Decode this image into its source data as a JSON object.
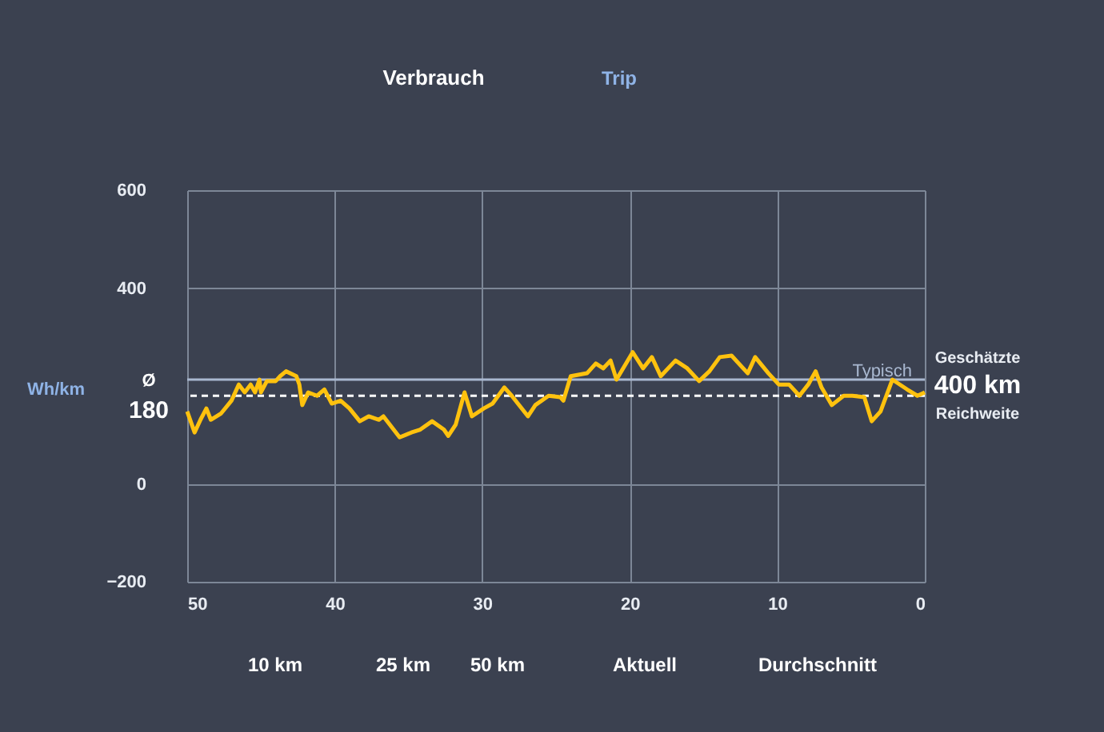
{
  "chart_data": {
    "type": "line",
    "ylabel": "Wh/km",
    "xlim": [
      50,
      0
    ],
    "xticks": [
      50,
      40,
      30,
      20,
      10,
      0
    ],
    "ylim": [
      -200,
      600
    ],
    "yticks": [
      -200,
      0,
      400,
      600
    ],
    "grid": true,
    "marker": "none",
    "line_style": "solid",
    "x": [
      50,
      49.5,
      49.1,
      48.7,
      48.4,
      47.7,
      47.0,
      46.5,
      46.1,
      45.7,
      45.4,
      45.1,
      45.0,
      44.6,
      44.0,
      43.7,
      43.3,
      42.6,
      42.4,
      42.2,
      41.8,
      41.2,
      40.7,
      40.2,
      39.6,
      39.0,
      38.3,
      37.7,
      37.0,
      36.7,
      35.6,
      34.8,
      34.2,
      33.4,
      32.6,
      32.3,
      31.8,
      31.2,
      30.7,
      29.9,
      29.3,
      28.5,
      28.0,
      26.9,
      26.4,
      25.5,
      24.7,
      24.5,
      24.0,
      22.9,
      22.3,
      21.8,
      21.3,
      20.9,
      19.8,
      19.1,
      18.5,
      17.9,
      16.9,
      16.1,
      15.3,
      14.6,
      13.9,
      13.1,
      12.0,
      11.5,
      10.6,
      9.9,
      9.2,
      8.5,
      7.9,
      7.4,
      7.0,
      6.3,
      5.5,
      4.9,
      4.1,
      3.6,
      3.0,
      2.2,
      1.2,
      0.5,
      0
    ],
    "series": [
      {
        "color": "#ffc20e",
        "values": [
          148,
          105,
          131,
          154,
          131,
          144,
          170,
          203,
          187,
          203,
          187,
          213,
          187,
          210,
          210,
          220,
          230,
          220,
          203,
          161,
          187,
          180,
          193,
          164,
          170,
          154,
          128,
          138,
          131,
          138,
          95,
          105,
          111,
          128,
          111,
          98,
          121,
          187,
          138,
          154,
          164,
          197,
          180,
          138,
          161,
          180,
          177,
          170,
          220,
          226,
          246,
          236,
          252,
          213,
          269,
          236,
          259,
          220,
          252,
          236,
          210,
          230,
          259,
          262,
          226,
          259,
          226,
          203,
          203,
          180,
          203,
          230,
          197,
          161,
          180,
          180,
          177,
          128,
          148,
          213,
          193,
          180,
          187
        ]
      }
    ],
    "ref_lines": [
      {
        "axis": "y",
        "value": 180,
        "label": "Ø 180",
        "line_style": "dashed",
        "color": "#ffffff"
      },
      {
        "axis": "y",
        "value": 213,
        "label": "Typisch",
        "color": "#a9b8d0",
        "line_style": "solid"
      }
    ],
    "annotations": [
      "Verbrauch",
      "Trip",
      "Geschätzte",
      "400 km",
      "Reichweite",
      "10 km",
      "25 km",
      "50 km",
      "Aktuell",
      "Durchschnitt"
    ]
  }
}
